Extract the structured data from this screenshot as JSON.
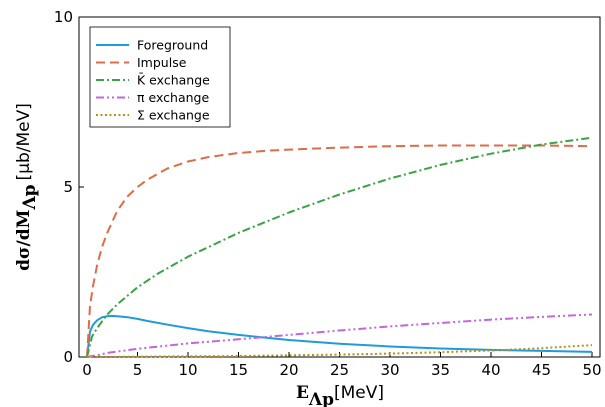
{
  "chart_data": {
    "type": "line",
    "xlim": [
      0,
      50
    ],
    "ylim": [
      0,
      10
    ],
    "xticks": [
      0,
      5,
      10,
      15,
      20,
      25,
      30,
      35,
      40,
      45,
      50
    ],
    "yticks": [
      0,
      5,
      10
    ],
    "grid": false,
    "legend_position": "top-left",
    "xlabel": {
      "main": "E",
      "subscript": "Λp",
      "unit": "[MeV]"
    },
    "ylabel": {
      "main": "dσ/dM",
      "subscript": "Λp",
      "unit": "[μb/MeV]"
    },
    "series": [
      {
        "name": "Foreground",
        "color": "#1f9bdd",
        "style": "solid",
        "x": [
          0,
          0.3,
          0.6,
          1,
          1.5,
          2,
          2.5,
          3,
          4,
          5,
          6,
          8,
          10,
          12,
          15,
          18,
          20,
          25,
          30,
          35,
          40,
          45,
          50
        ],
        "y": [
          0,
          0.75,
          0.95,
          1.08,
          1.17,
          1.2,
          1.21,
          1.2,
          1.17,
          1.12,
          1.06,
          0.95,
          0.85,
          0.76,
          0.65,
          0.56,
          0.5,
          0.39,
          0.31,
          0.25,
          0.21,
          0.18,
          0.15
        ]
      },
      {
        "name": "Impulse",
        "color": "#e06c47",
        "style": "dashed",
        "x": [
          0,
          0.3,
          0.6,
          1,
          1.5,
          2,
          3,
          4,
          5,
          6,
          8,
          10,
          12,
          15,
          18,
          20,
          25,
          30,
          35,
          40,
          45,
          50
        ],
        "y": [
          0,
          1.5,
          2.1,
          2.7,
          3.25,
          3.65,
          4.3,
          4.72,
          5.0,
          5.22,
          5.55,
          5.75,
          5.88,
          6.0,
          6.07,
          6.1,
          6.16,
          6.2,
          6.22,
          6.22,
          6.22,
          6.2
        ]
      },
      {
        "name": "K̄ exchange",
        "color": "#3aa346",
        "style": "dash-dot",
        "x": [
          0,
          0.5,
          1,
          2,
          3,
          5,
          7,
          10,
          15,
          20,
          25,
          30,
          35,
          40,
          45,
          50
        ],
        "y": [
          0,
          0.6,
          0.85,
          1.25,
          1.55,
          2.05,
          2.45,
          2.95,
          3.65,
          4.25,
          4.78,
          5.25,
          5.65,
          5.98,
          6.25,
          6.45
        ]
      },
      {
        "name": "π exchange",
        "color": "#c266dc",
        "style": "dash-dot-dot",
        "x": [
          0,
          1,
          2,
          5,
          10,
          15,
          20,
          25,
          30,
          35,
          40,
          45,
          50
        ],
        "y": [
          0,
          0.05,
          0.12,
          0.24,
          0.4,
          0.52,
          0.65,
          0.78,
          0.9,
          1.0,
          1.1,
          1.18,
          1.25
        ]
      },
      {
        "name": "Σ exchange",
        "color": "#bd9014",
        "style": "dotted",
        "x": [
          0,
          5,
          10,
          15,
          20,
          25,
          30,
          35,
          40,
          45,
          50
        ],
        "y": [
          0,
          0.01,
          0.02,
          0.03,
          0.05,
          0.07,
          0.1,
          0.14,
          0.19,
          0.26,
          0.35
        ]
      }
    ]
  }
}
